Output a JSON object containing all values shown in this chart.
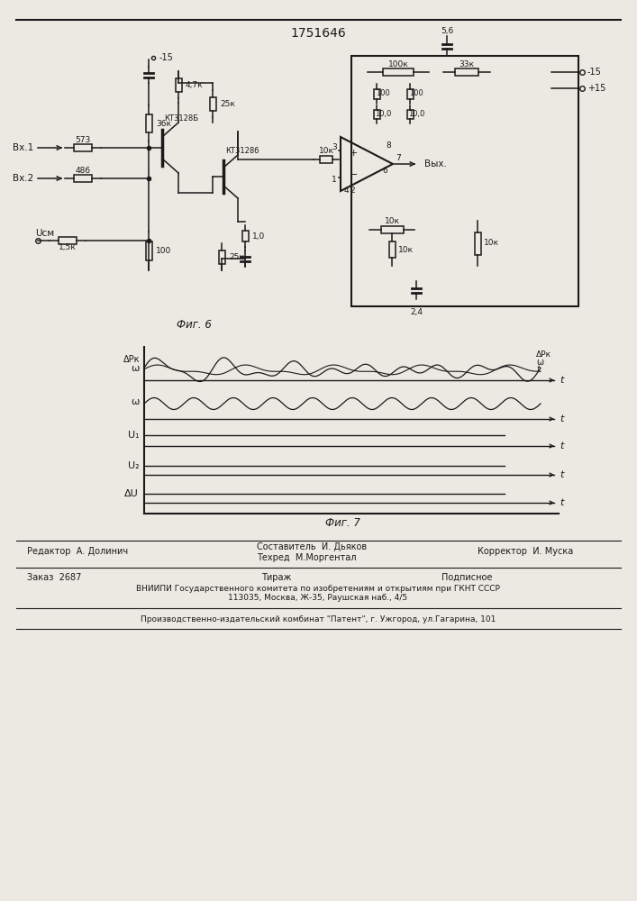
{
  "patent_number": "1751646",
  "fig6_caption": "Фиг. 6",
  "fig7_caption": "Фиг. 7",
  "background_color": "#ece9e2",
  "line_color": "#1a1a1a",
  "footer_editor": "Редактор  А. Долинич",
  "footer_composer": "Составитель  И. Дьяков",
  "footer_techred": "Техред  М.Моргентал",
  "footer_corrector": "Корректор  И. Муска",
  "footer_order": "Заказ  2687",
  "footer_tirazh": "Тираж",
  "footer_podp": "Подписное",
  "footer_vniipи": "ВНИИПИ Государственного комитета по изобретениям и открытиям при ГКНТ СССР",
  "footer_addr": "113035, Москва, Ж-35, Раушская наб., 4/5",
  "footer_patent": "Производственно-издательский комбинат \"Патент\", г. Ужгород, ул.Гагарина, 101"
}
